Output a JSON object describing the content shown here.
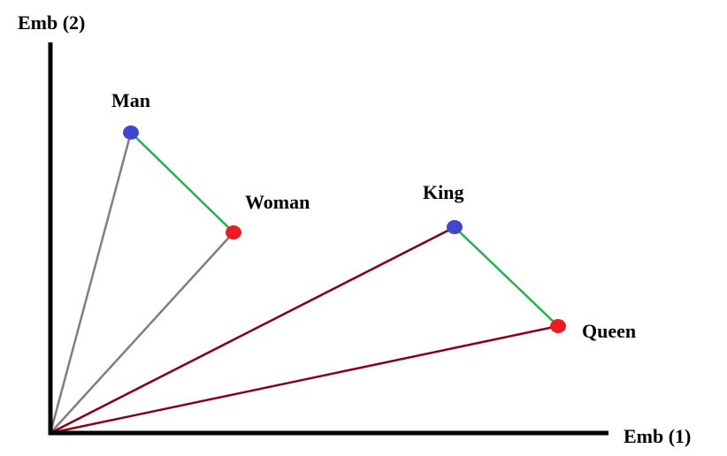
{
  "axes": {
    "x_label": "Emb (1)",
    "y_label": "Emb (2)"
  },
  "points": [
    {
      "id": "man",
      "label": "Man"
    },
    {
      "id": "woman",
      "label": "Woman"
    },
    {
      "id": "king",
      "label": "King"
    },
    {
      "id": "queen",
      "label": "Queen"
    }
  ],
  "colors": {
    "background": "#ffffff",
    "axis": "#000000",
    "blue_point": "#3f48cc",
    "red_point": "#ed1c24",
    "gender_link": "#22b14c",
    "man_woman_vectors": "#7f7f7f",
    "king_queen_vectors": "#880015"
  }
}
